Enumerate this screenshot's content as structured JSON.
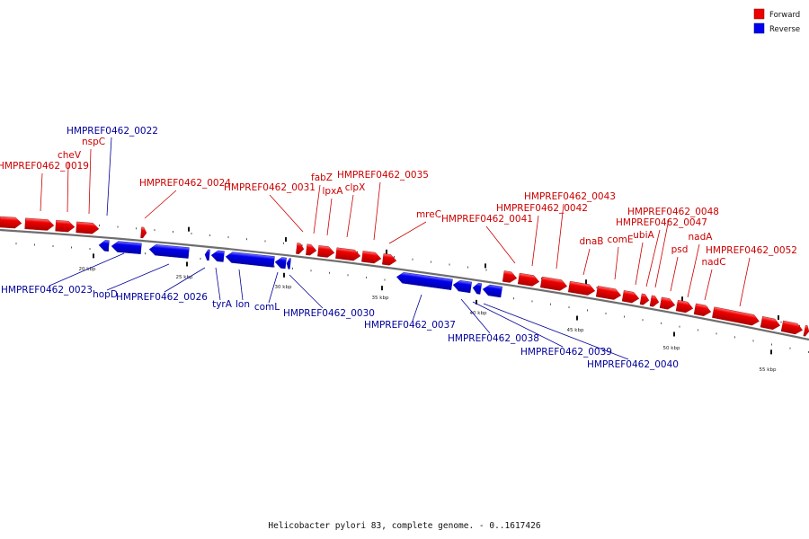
{
  "legend": [
    {
      "label": "Forward",
      "color": "#ee0000"
    },
    {
      "label": "Reverse",
      "color": "#0000ee"
    }
  ],
  "caption": "Helicobacter pylori 83, complete genome. - 0..1617426",
  "colors": {
    "forward": "#ee0000",
    "reverse": "#0000ee",
    "label_forward": "#cc0000",
    "label_reverse": "#000099",
    "backbone": "#777777"
  },
  "kbp_ticks": [
    "20 kbp",
    "25 kbp",
    "30 kbp",
    "35 kbp",
    "40 kbp",
    "45 kbp",
    "50 kbp",
    "55 kbp"
  ],
  "forward_genes": [
    "HMPREF0462_0019",
    "cheV",
    "nspC",
    "HMPREF0462_0024",
    "HMPREF0462_0031",
    "fabZ",
    "lpxA",
    "clpX",
    "HMPREF0462_0035",
    "mreC",
    "HMPREF0462_0041",
    "HMPREF0462_0042",
    "HMPREF0462_0043",
    "dnaB",
    "comE",
    "ubiA",
    "HMPREF0462_0047",
    "HMPREF0462_0048",
    "psd",
    "nadA",
    "nadC",
    "HMPREF0462_0052"
  ],
  "reverse_genes": [
    "HMPREF0462_0022",
    "HMPREF0462_0023",
    "hopD",
    "HMPREF0462_0026",
    "tyrA",
    "lon",
    "comL",
    "HMPREF0462_0030",
    "HMPREF0462_0037",
    "HMPREF0462_0038",
    "HMPREF0462_0039",
    "HMPREF0462_0040"
  ]
}
